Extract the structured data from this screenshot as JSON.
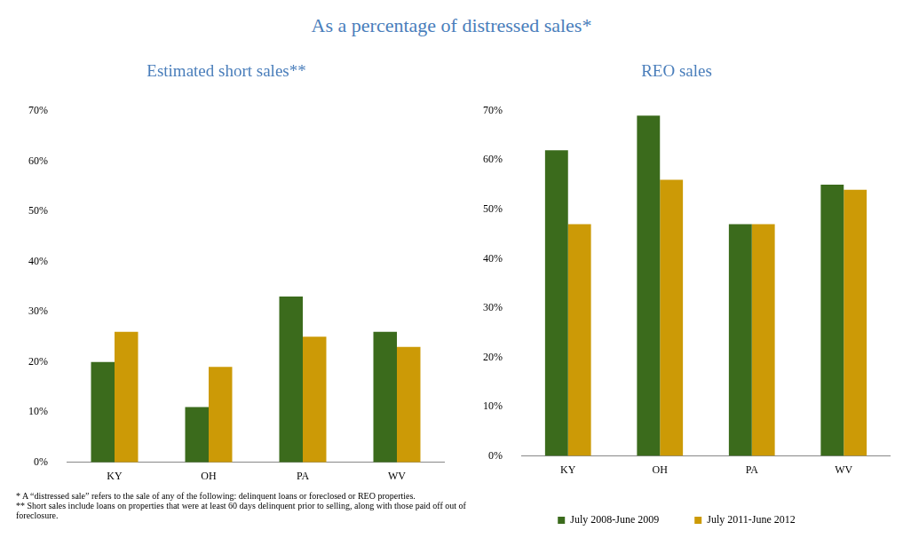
{
  "title": "As a percentage of distressed sales*",
  "notes": [
    "* A “distressed sale” refers to the sale of any of the following: delinquent loans or foreclosed or REO properties.",
    "** Short sales include loans on properties that were at least 60 days delinquent prior to selling, along with those paid off out of foreclosure."
  ],
  "chart_data": [
    {
      "type": "bar",
      "title": "Estimated short sales**",
      "categories": [
        "KY",
        "OH",
        "PA",
        "WV"
      ],
      "series": [
        {
          "name": "July 2008-June 2009",
          "color": "#3b6b1c",
          "values": [
            20,
            11,
            33,
            26
          ]
        },
        {
          "name": "July 2011-June 2012",
          "color": "#cc9a06",
          "values": [
            26,
            19,
            25,
            23
          ]
        }
      ],
      "ylim": [
        0,
        70
      ],
      "yticks": [
        {
          "value": 0,
          "label": "0%"
        },
        {
          "value": 10,
          "label": "10%"
        },
        {
          "value": 20,
          "label": "20%"
        },
        {
          "value": 30,
          "label": "30%"
        },
        {
          "value": 40,
          "label": "40%"
        },
        {
          "value": 50,
          "label": "50%"
        },
        {
          "value": 60,
          "label": "60%"
        },
        {
          "value": 70,
          "label": "70%"
        }
      ],
      "grid": false
    },
    {
      "type": "bar",
      "title": "REO sales",
      "categories": [
        "KY",
        "OH",
        "PA",
        "WV"
      ],
      "series": [
        {
          "name": "July 2008-June 2009",
          "color": "#3b6b1c",
          "values": [
            62,
            69,
            47,
            55
          ]
        },
        {
          "name": "July 2011-June 2012",
          "color": "#cc9a06",
          "values": [
            47,
            56,
            47,
            54
          ]
        }
      ],
      "ylim": [
        0,
        70
      ],
      "yticks": [
        {
          "value": 0,
          "label": "0%"
        },
        {
          "value": 10,
          "label": "10%"
        },
        {
          "value": 20,
          "label": "20%"
        },
        {
          "value": 30,
          "label": "30%"
        },
        {
          "value": 40,
          "label": "40%"
        },
        {
          "value": 50,
          "label": "50%"
        },
        {
          "value": 60,
          "label": "60%"
        },
        {
          "value": 70,
          "label": "70%"
        }
      ],
      "grid": false,
      "legend": "bottom"
    }
  ]
}
